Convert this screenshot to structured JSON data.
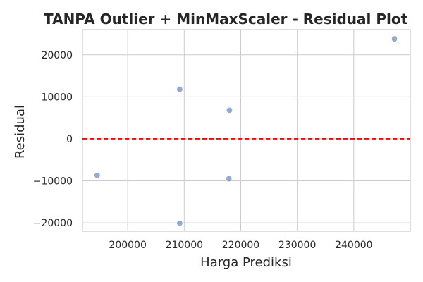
{
  "chart_data": {
    "type": "scatter",
    "title": "TANPA Outlier + MinMaxScaler - Residual Plot",
    "xlabel": "Harga Prediksi",
    "ylabel": "Residual",
    "xlim": [
      192000,
      250000
    ],
    "ylim": [
      -22000,
      26000
    ],
    "x_ticks": [
      200000,
      210000,
      220000,
      230000,
      240000
    ],
    "y_ticks": [
      -20000,
      -10000,
      0,
      10000,
      20000
    ],
    "x_tick_labels": [
      "200000",
      "210000",
      "220000",
      "230000",
      "240000"
    ],
    "y_tick_labels": [
      "−20000",
      "−10000",
      "0",
      "10000",
      "20000"
    ],
    "grid": true,
    "reference_line": {
      "y": 0,
      "style": "dashed",
      "color": "#ff0000"
    },
    "points": [
      {
        "x": 194600,
        "y": -8700
      },
      {
        "x": 209200,
        "y": 11800
      },
      {
        "x": 209200,
        "y": -20100
      },
      {
        "x": 218000,
        "y": 6800
      },
      {
        "x": 217900,
        "y": -9500
      },
      {
        "x": 247200,
        "y": 23800
      }
    ],
    "point_color": "#4c72b0"
  }
}
